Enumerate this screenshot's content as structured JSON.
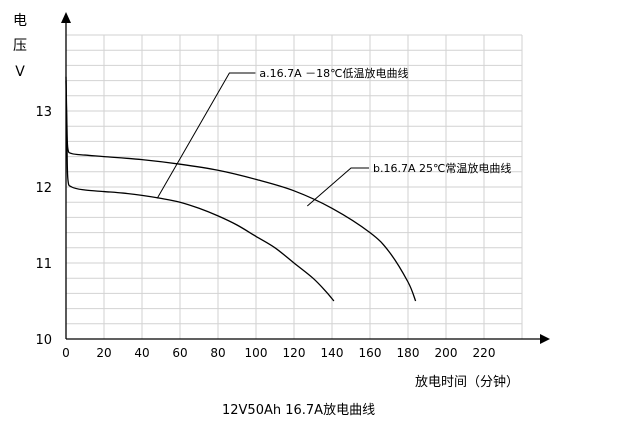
{
  "chart_data": {
    "type": "line",
    "title": "12V50Ah 16.7A放电曲线",
    "xlabel": "放电时间（分钟）",
    "ylabel_chars": [
      "电",
      "压",
      "V"
    ],
    "xlim": [
      0,
      240
    ],
    "ylim": [
      10,
      14
    ],
    "x_ticks": [
      0,
      20,
      40,
      60,
      80,
      100,
      120,
      140,
      160,
      180,
      200,
      220
    ],
    "y_ticks": [
      10,
      11,
      12,
      13
    ],
    "grid": true,
    "series": [
      {
        "name": "a.16.7A －18℃低温放电曲线",
        "points": [
          [
            0,
            13.4
          ],
          [
            0.5,
            12.6
          ],
          [
            1,
            12.1
          ],
          [
            3,
            12.0
          ],
          [
            10,
            11.96
          ],
          [
            20,
            11.94
          ],
          [
            30,
            11.92
          ],
          [
            40,
            11.89
          ],
          [
            50,
            11.85
          ],
          [
            60,
            11.8
          ],
          [
            70,
            11.72
          ],
          [
            80,
            11.62
          ],
          [
            90,
            11.5
          ],
          [
            100,
            11.35
          ],
          [
            110,
            11.2
          ],
          [
            120,
            11.0
          ],
          [
            130,
            10.8
          ],
          [
            137,
            10.62
          ],
          [
            141,
            10.5
          ]
        ],
        "annotation_anchor": [
          48,
          11.85
        ],
        "label_anchor": [
          86,
          13.5
        ]
      },
      {
        "name": "b.16.7A 25℃常温放电曲线",
        "points": [
          [
            0,
            13.45
          ],
          [
            0.5,
            12.8
          ],
          [
            1,
            12.5
          ],
          [
            3,
            12.44
          ],
          [
            10,
            12.42
          ],
          [
            20,
            12.4
          ],
          [
            40,
            12.36
          ],
          [
            60,
            12.3
          ],
          [
            80,
            12.22
          ],
          [
            100,
            12.1
          ],
          [
            120,
            11.95
          ],
          [
            140,
            11.72
          ],
          [
            160,
            11.4
          ],
          [
            170,
            11.15
          ],
          [
            180,
            10.75
          ],
          [
            184,
            10.5
          ]
        ],
        "annotation_anchor": [
          127,
          11.75
        ],
        "label_anchor": [
          150,
          12.25
        ]
      }
    ]
  }
}
